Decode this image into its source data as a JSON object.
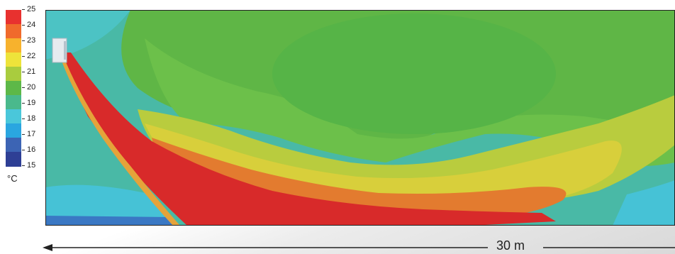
{
  "legend": {
    "ticks": [
      "25",
      "24",
      "23",
      "22",
      "21",
      "20",
      "19",
      "18",
      "17",
      "16",
      "15"
    ],
    "unit": "°C",
    "colors": [
      "#e8312f",
      "#f06a2c",
      "#f7b22d",
      "#eee33a",
      "#a9cc3e",
      "#5db848",
      "#4ab98c",
      "#4ac7da",
      "#2aa6e0",
      "#3c64b4",
      "#2e3f95"
    ]
  },
  "scale": {
    "label": "30 m"
  },
  "colors": {
    "hot_core": "#d82a2a",
    "orange": "#e77a2e",
    "yellow": "#d9cf3a",
    "green_mid": "#6cbf48",
    "green_light": "#8ec94a",
    "cyan_light": "#49c3c8",
    "blue_deep": "#2f4aa0"
  }
}
